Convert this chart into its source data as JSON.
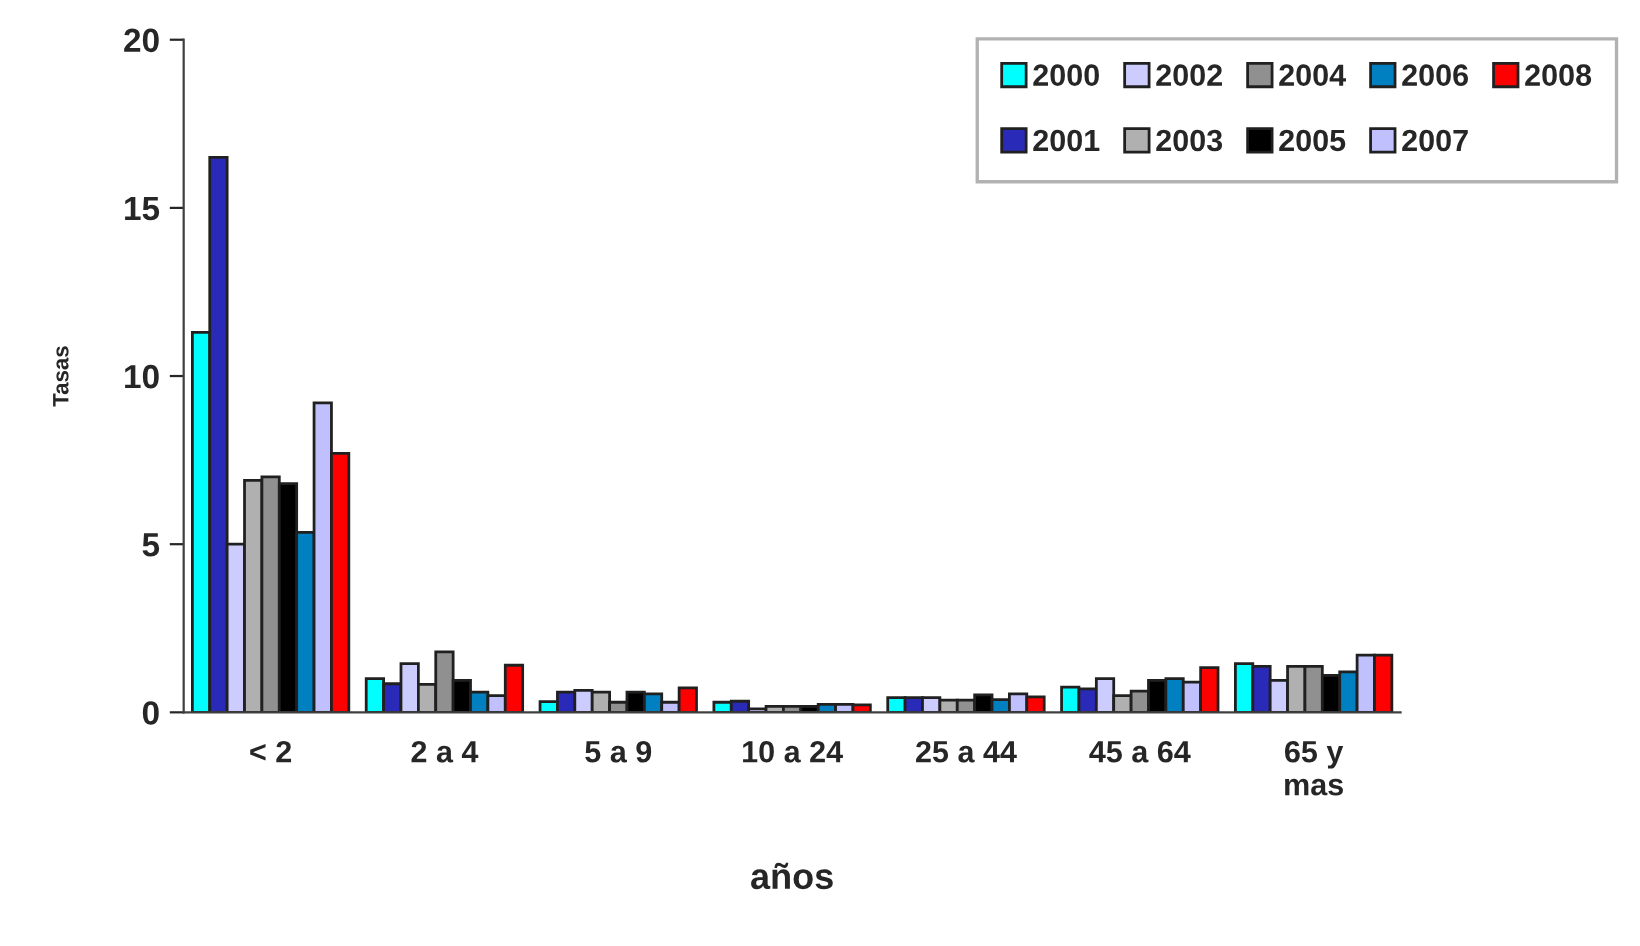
{
  "chart_data": {
    "type": "bar",
    "xlabel": "años",
    "ylabel": "Tasas",
    "categories": [
      "< 2",
      "2 a 4",
      "5 a 9",
      "10 a 24",
      "25 a 44",
      "45 a 64",
      "65 y\nmas"
    ],
    "ylim": [
      0,
      20
    ],
    "yticks": [
      0,
      5,
      10,
      15,
      20
    ],
    "grid": false,
    "legend": "top right",
    "series": [
      {
        "name": "2000",
        "color": "#00ffff",
        "values": [
          11.3,
          1.0,
          0.32,
          0.3,
          0.44,
          0.75,
          1.45
        ]
      },
      {
        "name": "2001",
        "color": "#2a2ab8",
        "values": [
          16.5,
          0.85,
          0.6,
          0.33,
          0.44,
          0.7,
          1.37
        ]
      },
      {
        "name": "2002",
        "color": "#ccccff",
        "values": [
          5.0,
          1.45,
          0.65,
          0.1,
          0.44,
          1.0,
          0.95
        ]
      },
      {
        "name": "2003",
        "color": "#b0b0b0",
        "values": [
          6.9,
          0.83,
          0.6,
          0.18,
          0.36,
          0.5,
          1.37
        ]
      },
      {
        "name": "2004",
        "color": "#909090",
        "values": [
          7.0,
          1.8,
          0.3,
          0.18,
          0.36,
          0.63,
          1.37
        ]
      },
      {
        "name": "2005",
        "color": "#000000",
        "values": [
          6.8,
          0.95,
          0.6,
          0.18,
          0.52,
          0.95,
          1.1
        ]
      },
      {
        "name": "2006",
        "color": "#0080c0",
        "values": [
          5.35,
          0.6,
          0.55,
          0.24,
          0.38,
          1.0,
          1.2
        ]
      },
      {
        "name": "2007",
        "color": "#c0c0ff",
        "values": [
          9.2,
          0.5,
          0.3,
          0.24,
          0.55,
          0.9,
          1.7
        ]
      },
      {
        "name": "2008",
        "color": "#ff0000",
        "values": [
          7.7,
          1.4,
          0.73,
          0.22,
          0.46,
          1.33,
          1.7
        ]
      }
    ]
  }
}
